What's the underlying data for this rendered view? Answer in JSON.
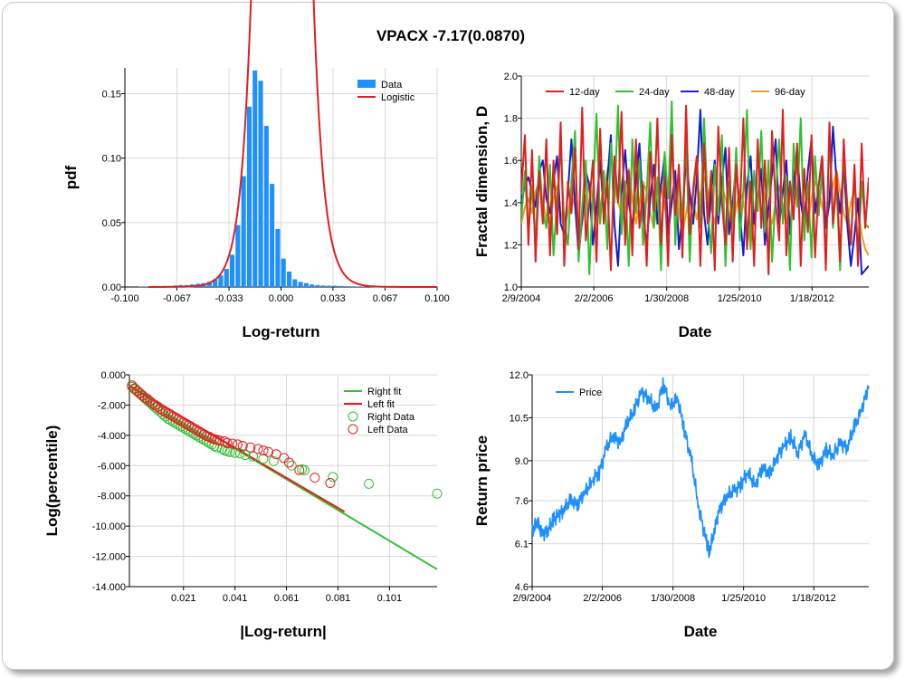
{
  "page_title": "VPACX -7.17(0.0870)",
  "chart_data": [
    {
      "id": "pdf",
      "type": "bar",
      "xlabel": "Log-return",
      "ylabel": "pdf",
      "xlim": [
        -0.1,
        0.1
      ],
      "ylim": [
        0,
        0.17
      ],
      "xticks": [
        "-0.100",
        "-0.067",
        "-0.033",
        "0.000",
        "0.033",
        "0.067",
        "0.100"
      ],
      "yticks": [
        "0.00",
        "0.05",
        "0.10",
        "0.15"
      ],
      "ytick_values": [
        0,
        0.05,
        0.1,
        0.15
      ],
      "legend": [
        {
          "name": "Data",
          "color": "#1e90ff"
        },
        {
          "name": "Logistic",
          "color": "#e02020"
        }
      ],
      "bins": {
        "start": -0.0915,
        "width": 0.00365,
        "values": [
          0.0003,
          0.0003,
          0.0005,
          0.0005,
          0.0008,
          0.0008,
          0.0012,
          0.0015,
          0.0015,
          0.002,
          0.0025,
          0.003,
          0.004,
          0.006,
          0.009,
          0.014,
          0.025,
          0.048,
          0.086,
          0.14,
          0.168,
          0.16,
          0.125,
          0.08,
          0.045,
          0.022,
          0.012,
          0.006,
          0.004,
          0.003,
          0.002,
          0.0015,
          0.0012,
          0.001,
          0.001,
          0.0008,
          0.0006,
          0.0005,
          0.0004,
          0.0003,
          0.0002,
          0.0002,
          0.0002,
          0.0001,
          0.0001
        ]
      },
      "fit_scale": 0.00615,
      "fit_center": 0.0008
    },
    {
      "id": "fractal",
      "type": "line",
      "xlabel": "Date",
      "ylabel": "Fractal dimension, D",
      "ylim": [
        1.0,
        2.0
      ],
      "xticks": [
        "2/9/2004",
        "2/2/2006",
        "1/30/2008",
        "1/25/2010",
        "1/18/2012"
      ],
      "xtick_values": [
        2004.11,
        2006.09,
        2008.08,
        2010.07,
        2012.05
      ],
      "xlim": [
        2004.11,
        2013.6
      ],
      "yticks": [
        "1.0",
        "1.2",
        "1.4",
        "1.6",
        "1.8",
        "2.0"
      ],
      "ytick_values": [
        1.0,
        1.2,
        1.4,
        1.6,
        1.8,
        2.0
      ],
      "series": [
        {
          "name": "12-day",
          "color": "#e02020",
          "values": [
            1.45,
            1.72,
            1.2,
            1.65,
            1.12,
            1.55,
            1.3,
            1.7,
            1.15,
            1.6,
            1.25,
            1.78,
            1.1,
            1.5,
            1.35,
            1.66,
            1.18,
            1.85,
            1.22,
            1.4,
            1.6,
            1.12,
            1.75,
            1.3,
            1.5,
            1.08,
            1.62,
            1.4,
            1.83,
            1.2,
            1.55,
            1.15,
            1.7,
            1.28,
            1.48,
            1.1,
            1.64,
            1.36,
            1.8,
            1.2,
            1.52,
            1.1,
            1.72,
            1.34,
            1.58,
            1.14,
            1.86,
            1.25,
            1.45,
            1.62,
            1.1,
            1.68,
            1.3,
            1.55,
            1.08,
            1.76,
            1.4,
            1.2,
            1.66,
            1.12,
            1.58,
            1.35,
            1.8,
            1.18,
            1.5,
            1.1,
            1.7,
            1.28,
            1.6,
            1.06,
            1.74,
            1.4,
            1.22,
            1.84,
            1.15,
            1.5,
            1.32,
            1.68,
            1.1,
            1.56,
            1.26,
            1.72,
            1.14,
            1.48,
            1.62,
            1.08,
            1.78,
            1.3,
            1.54,
            1.12,
            1.7,
            1.36,
            1.2,
            1.58,
            1.1,
            1.68,
            1.28,
            1.52
          ]
        },
        {
          "name": "24-day",
          "color": "#30c030",
          "values": [
            1.32,
            1.55,
            1.25,
            1.48,
            1.2,
            1.62,
            1.35,
            1.28,
            1.58,
            1.15,
            1.42,
            1.66,
            1.3,
            1.2,
            1.5,
            1.74,
            1.12,
            1.38,
            1.6,
            1.06,
            1.45,
            1.82,
            1.3,
            1.55,
            1.18,
            1.68,
            1.4,
            1.86,
            1.25,
            1.5,
            1.1,
            1.7,
            1.35,
            1.6,
            1.2,
            1.45,
            1.78,
            1.28,
            1.52,
            1.08,
            1.64,
            1.42,
            1.88,
            1.2,
            1.55,
            1.32,
            1.7,
            1.12,
            1.48,
            1.62,
            1.28,
            1.8,
            1.4,
            1.16,
            1.58,
            1.34,
            1.72,
            1.1,
            1.5,
            1.3,
            1.66,
            1.22,
            1.46,
            1.84,
            1.18,
            1.55,
            1.36,
            1.74,
            1.26,
            1.6,
            1.12,
            1.44,
            1.7,
            1.3,
            1.52,
            1.08,
            1.68,
            1.38,
            1.8,
            1.22,
            1.5,
            1.14,
            1.62,
            1.34,
            1.56,
            1.1,
            1.72,
            1.28,
            1.48,
            1.08,
            1.64,
            1.4,
            1.2,
            1.56,
            1.12,
            1.5,
            1.3,
            1.28
          ]
        },
        {
          "name": "48-day",
          "color": "#1020d0",
          "values": [
            1.4,
            1.48,
            1.52,
            1.45,
            1.38,
            1.55,
            1.6,
            1.42,
            1.35,
            1.5,
            1.62,
            1.3,
            1.25,
            1.45,
            1.7,
            1.4,
            1.15,
            1.32,
            1.55,
            1.48,
            1.2,
            1.38,
            1.6,
            1.35,
            1.5,
            1.72,
            1.3,
            1.1,
            1.45,
            1.65,
            1.4,
            1.28,
            1.5,
            1.68,
            1.35,
            1.2,
            1.42,
            1.58,
            1.3,
            1.48,
            1.62,
            1.25,
            1.4,
            1.55,
            1.18,
            1.35,
            1.6,
            1.45,
            1.3,
            1.52,
            1.84,
            1.35,
            1.2,
            1.45,
            1.6,
            1.3,
            1.5,
            1.66,
            1.25,
            1.4,
            1.58,
            1.35,
            1.15,
            1.48,
            1.62,
            1.3,
            1.42,
            1.56,
            1.2,
            1.38,
            1.54,
            1.7,
            1.3,
            1.45,
            1.6,
            1.25,
            1.5,
            1.66,
            1.4,
            1.3,
            1.55,
            1.7,
            1.35,
            1.48,
            1.62,
            1.28,
            1.4,
            1.76,
            1.5,
            1.35,
            1.58,
            1.3,
            1.1,
            1.25,
            1.42,
            1.06,
            1.08,
            1.1
          ]
        },
        {
          "name": "96-day",
          "color": "#f0a010",
          "values": [
            1.3,
            1.38,
            1.42,
            1.35,
            1.45,
            1.5,
            1.4,
            1.32,
            1.3,
            1.42,
            1.48,
            1.36,
            1.28,
            1.35,
            1.44,
            1.38,
            1.25,
            1.3,
            1.42,
            1.5,
            1.4,
            1.3,
            1.38,
            1.46,
            1.55,
            1.62,
            1.5,
            1.4,
            1.35,
            1.48,
            1.56,
            1.42,
            1.3,
            1.4,
            1.5,
            1.45,
            1.35,
            1.28,
            1.4,
            1.48,
            1.38,
            1.3,
            1.42,
            1.5,
            1.36,
            1.25,
            1.35,
            1.45,
            1.4,
            1.32,
            1.44,
            1.52,
            1.46,
            1.38,
            1.3,
            1.4,
            1.48,
            1.42,
            1.35,
            1.28,
            1.38,
            1.46,
            1.4,
            1.3,
            1.2,
            1.32,
            1.44,
            1.5,
            1.42,
            1.34,
            1.3,
            1.4,
            1.48,
            1.38,
            1.3,
            1.42,
            1.5,
            1.56,
            1.44,
            1.36,
            1.3,
            1.42,
            1.5,
            1.46,
            1.38,
            1.32,
            1.4,
            1.48,
            1.55,
            1.45,
            1.35,
            1.3,
            1.4,
            1.46,
            1.38,
            1.25,
            1.18,
            1.15
          ]
        }
      ]
    },
    {
      "id": "tail",
      "type": "scatter",
      "xlabel": "|Log-return|",
      "ylabel": "Log(percentile)",
      "xlim": [
        0.0,
        0.1195
      ],
      "ylim": [
        -14.0,
        0.0
      ],
      "xticks": [
        "0.021",
        "0.041",
        "0.061",
        "0.081",
        "0.101"
      ],
      "xtick_values": [
        0.021,
        0.041,
        0.061,
        0.081,
        0.101
      ],
      "yticks": [
        "0.000",
        "-2.000",
        "-4.000",
        "-6.000",
        "-8.000",
        "-10.000",
        "-12.000",
        "-14.000"
      ],
      "ytick_values": [
        0,
        -2,
        -4,
        -6,
        -8,
        -10,
        -12,
        -14
      ],
      "legend": [
        {
          "name": "Right fit",
          "color": "#30c030",
          "kind": "line"
        },
        {
          "name": "Left fit",
          "color": "#e02020",
          "kind": "line"
        },
        {
          "name": "Right Data",
          "color": "#30c030",
          "kind": "marker"
        },
        {
          "name": "Left Data",
          "color": "#e02020",
          "kind": "marker"
        }
      ],
      "right_fit": {
        "x": [
          0.0,
          0.1195
        ],
        "y": [
          -0.7,
          -12.85
        ]
      },
      "left_fit": {
        "x": [
          0.0,
          0.0835
        ],
        "y": [
          -0.75,
          -9.05
        ]
      },
      "right_data": {
        "x": [
          0.001,
          0.002,
          0.003,
          0.004,
          0.005,
          0.006,
          0.007,
          0.008,
          0.009,
          0.01,
          0.011,
          0.012,
          0.013,
          0.014,
          0.015,
          0.016,
          0.017,
          0.018,
          0.019,
          0.02,
          0.021,
          0.022,
          0.023,
          0.024,
          0.025,
          0.026,
          0.027,
          0.028,
          0.029,
          0.03,
          0.031,
          0.032,
          0.033,
          0.034,
          0.036,
          0.037,
          0.038,
          0.039,
          0.041,
          0.043,
          0.045,
          0.048,
          0.052,
          0.056,
          0.063,
          0.067,
          0.068,
          0.079,
          0.093,
          0.1195
        ],
        "y": [
          -0.8,
          -0.95,
          -1.1,
          -1.25,
          -1.4,
          -1.55,
          -1.7,
          -1.85,
          -2.0,
          -2.15,
          -2.3,
          -2.45,
          -2.6,
          -2.75,
          -2.9,
          -3.0,
          -3.1,
          -3.2,
          -3.3,
          -3.4,
          -3.5,
          -3.6,
          -3.7,
          -3.8,
          -3.9,
          -4.0,
          -4.1,
          -4.2,
          -4.3,
          -4.4,
          -4.5,
          -4.6,
          -4.7,
          -4.8,
          -4.9,
          -5.0,
          -5.05,
          -5.1,
          -5.15,
          -5.2,
          -5.3,
          -5.4,
          -5.55,
          -5.7,
          -6.0,
          -6.25,
          -6.3,
          -6.75,
          -7.2,
          -7.85
        ]
      },
      "left_data": {
        "x": [
          0.001,
          0.002,
          0.003,
          0.004,
          0.005,
          0.006,
          0.007,
          0.008,
          0.009,
          0.01,
          0.011,
          0.012,
          0.013,
          0.014,
          0.015,
          0.016,
          0.017,
          0.018,
          0.019,
          0.02,
          0.021,
          0.022,
          0.023,
          0.024,
          0.025,
          0.026,
          0.027,
          0.028,
          0.029,
          0.03,
          0.031,
          0.032,
          0.033,
          0.034,
          0.035,
          0.037,
          0.038,
          0.04,
          0.042,
          0.044,
          0.047,
          0.05,
          0.052,
          0.054,
          0.057,
          0.06,
          0.062,
          0.066,
          0.072,
          0.078
        ],
        "y": [
          -0.7,
          -0.9,
          -1.05,
          -1.2,
          -1.35,
          -1.5,
          -1.6,
          -1.75,
          -1.9,
          -2.0,
          -2.1,
          -2.25,
          -2.35,
          -2.45,
          -2.55,
          -2.65,
          -2.75,
          -2.85,
          -2.95,
          -3.05,
          -3.15,
          -3.25,
          -3.35,
          -3.45,
          -3.55,
          -3.65,
          -3.75,
          -3.85,
          -3.95,
          -4.05,
          -4.1,
          -4.2,
          -4.25,
          -4.3,
          -4.35,
          -4.4,
          -4.5,
          -4.55,
          -4.6,
          -4.7,
          -4.8,
          -4.9,
          -5.0,
          -5.1,
          -5.25,
          -5.5,
          -5.8,
          -6.3,
          -6.8,
          -7.15
        ]
      }
    },
    {
      "id": "price",
      "type": "line",
      "xlabel": "Date",
      "ylabel": "Return price",
      "ylim": [
        4.6,
        12.0
      ],
      "xlim": [
        2004.11,
        2013.6
      ],
      "xticks": [
        "2/9/2004",
        "2/2/2006",
        "1/30/2008",
        "1/25/2010",
        "1/18/2012"
      ],
      "xtick_values": [
        2004.11,
        2006.09,
        2008.08,
        2010.07,
        2012.05
      ],
      "yticks": [
        "4.6",
        "6.1",
        "7.6",
        "9.0",
        "10.5",
        "12.0"
      ],
      "ytick_values": [
        4.6,
        6.1,
        7.6,
        9.0,
        10.5,
        12.0
      ],
      "legend": [
        {
          "name": "Price",
          "color": "#1e90ff"
        }
      ],
      "series": [
        {
          "name": "Price",
          "color": "#1e90ff",
          "x": [
            2004.11,
            2004.25,
            2004.4,
            2004.55,
            2004.7,
            2004.85,
            2005.0,
            2005.2,
            2005.4,
            2005.6,
            2005.8,
            2006.0,
            2006.2,
            2006.4,
            2006.6,
            2006.8,
            2007.0,
            2007.2,
            2007.4,
            2007.6,
            2007.8,
            2008.0,
            2008.2,
            2008.4,
            2008.6,
            2008.8,
            2009.0,
            2009.1,
            2009.25,
            2009.4,
            2009.6,
            2009.8,
            2010.0,
            2010.2,
            2010.4,
            2010.6,
            2010.8,
            2011.0,
            2011.2,
            2011.4,
            2011.6,
            2011.8,
            2012.0,
            2012.2,
            2012.4,
            2012.6,
            2012.8,
            2013.0,
            2013.2,
            2013.4,
            2013.6
          ],
          "values": [
            6.5,
            6.9,
            6.4,
            6.6,
            6.9,
            7.1,
            7.3,
            7.6,
            7.5,
            7.9,
            8.3,
            8.6,
            9.4,
            9.9,
            9.6,
            10.4,
            10.8,
            11.4,
            11.2,
            10.7,
            11.7,
            10.9,
            11.2,
            10.1,
            9.0,
            7.4,
            6.3,
            5.8,
            6.6,
            7.3,
            7.8,
            7.9,
            8.2,
            8.6,
            8.1,
            8.8,
            8.5,
            9.1,
            9.5,
            9.8,
            9.3,
            9.9,
            9.2,
            8.8,
            9.4,
            9.2,
            9.6,
            9.5,
            10.2,
            10.8,
            11.6
          ]
        }
      ]
    }
  ]
}
